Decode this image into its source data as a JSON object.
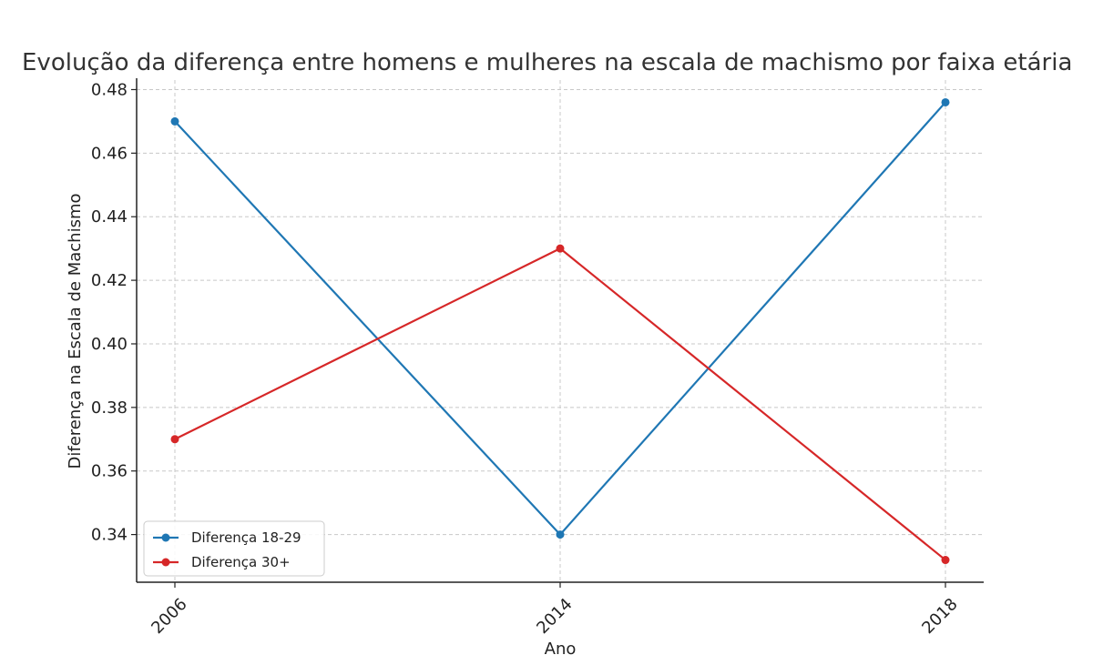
{
  "chart_data": {
    "type": "line",
    "title": "Evolução da diferença entre homens e mulheres na escala de machismo por faixa etária",
    "xlabel": "Ano",
    "ylabel": "Diferença na Escala de Machismo",
    "x": [
      "2006",
      "2014",
      "2018"
    ],
    "y_ticks": [
      "0.34",
      "0.36",
      "0.38",
      "0.40",
      "0.42",
      "0.44",
      "0.46",
      "0.48"
    ],
    "ylim": [
      0.325,
      0.483
    ],
    "grid": true,
    "legend_position": "lower-left",
    "series": [
      {
        "name": "Diferença 18-29",
        "color": "#1f77b4",
        "marker": "circle",
        "values": [
          0.47,
          0.34,
          0.476
        ]
      },
      {
        "name": "Diferença 30+",
        "color": "#d62728",
        "marker": "circle",
        "values": [
          0.37,
          0.43,
          0.332
        ]
      }
    ]
  }
}
